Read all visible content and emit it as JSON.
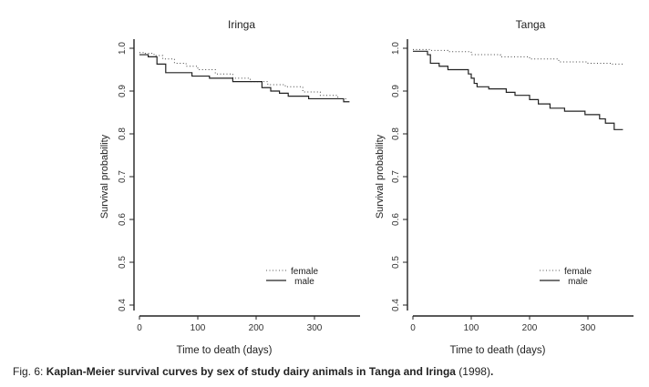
{
  "caption": {
    "prefix": "Fig. 6: ",
    "bold": "Kaplan-Meier survival curves by sex of study dairy animals in Tanga and Iringa",
    "suffix": " (1998)",
    "end": "."
  },
  "chart_data": [
    {
      "type": "line",
      "title": "Iringa",
      "xlabel": "Time to death (days)",
      "ylabel": "Survival probability",
      "xlim": [
        0,
        380
      ],
      "ylim": [
        0.4,
        1.0
      ],
      "xticks": [
        0,
        100,
        200,
        300
      ],
      "yticks": [
        "0.4",
        "0.5",
        "0.6",
        "0.7",
        "0.8",
        "0.9",
        "1.0"
      ],
      "legend": {
        "position": "bottom-right",
        "entries": [
          {
            "label": "female",
            "style": "dotted"
          },
          {
            "label": "male",
            "style": "solid"
          }
        ]
      },
      "series": [
        {
          "name": "female",
          "style": "dotted",
          "step": true,
          "x": [
            0,
            10,
            25,
            40,
            60,
            80,
            100,
            130,
            160,
            190,
            220,
            250,
            280,
            310,
            340,
            355
          ],
          "y": [
            0.99,
            0.988,
            0.983,
            0.975,
            0.965,
            0.958,
            0.95,
            0.94,
            0.93,
            0.922,
            0.915,
            0.91,
            0.898,
            0.89,
            0.882,
            0.879
          ]
        },
        {
          "name": "male",
          "style": "solid",
          "step": true,
          "x": [
            0,
            15,
            30,
            45,
            90,
            120,
            160,
            210,
            225,
            240,
            255,
            290,
            350,
            360
          ],
          "y": [
            0.985,
            0.98,
            0.963,
            0.943,
            0.935,
            0.93,
            0.922,
            0.908,
            0.9,
            0.895,
            0.888,
            0.882,
            0.875,
            0.875
          ]
        }
      ]
    },
    {
      "type": "line",
      "title": "Tanga",
      "xlabel": "Time to death (days)",
      "ylabel": "Survival probability",
      "xlim": [
        0,
        380
      ],
      "ylim": [
        0.4,
        1.0
      ],
      "xticks": [
        0,
        100,
        200,
        300
      ],
      "yticks": [
        "0.4",
        "0.5",
        "0.6",
        "0.7",
        "0.8",
        "0.9",
        "1.0"
      ],
      "legend": {
        "position": "bottom-right",
        "entries": [
          {
            "label": "female",
            "style": "dotted"
          },
          {
            "label": "male",
            "style": "solid"
          }
        ]
      },
      "series": [
        {
          "name": "female",
          "style": "dotted",
          "step": true,
          "x": [
            0,
            30,
            60,
            100,
            150,
            200,
            250,
            300,
            340,
            360
          ],
          "y": [
            0.997,
            0.995,
            0.992,
            0.985,
            0.98,
            0.975,
            0.968,
            0.965,
            0.963,
            0.963
          ]
        },
        {
          "name": "male",
          "style": "solid",
          "step": true,
          "x": [
            0,
            25,
            30,
            45,
            60,
            95,
            100,
            105,
            110,
            130,
            160,
            175,
            200,
            215,
            235,
            260,
            295,
            320,
            330,
            345,
            360
          ],
          "y": [
            0.993,
            0.985,
            0.965,
            0.958,
            0.95,
            0.94,
            0.93,
            0.918,
            0.91,
            0.905,
            0.897,
            0.89,
            0.88,
            0.87,
            0.86,
            0.853,
            0.845,
            0.835,
            0.825,
            0.81,
            0.81
          ]
        }
      ]
    }
  ]
}
